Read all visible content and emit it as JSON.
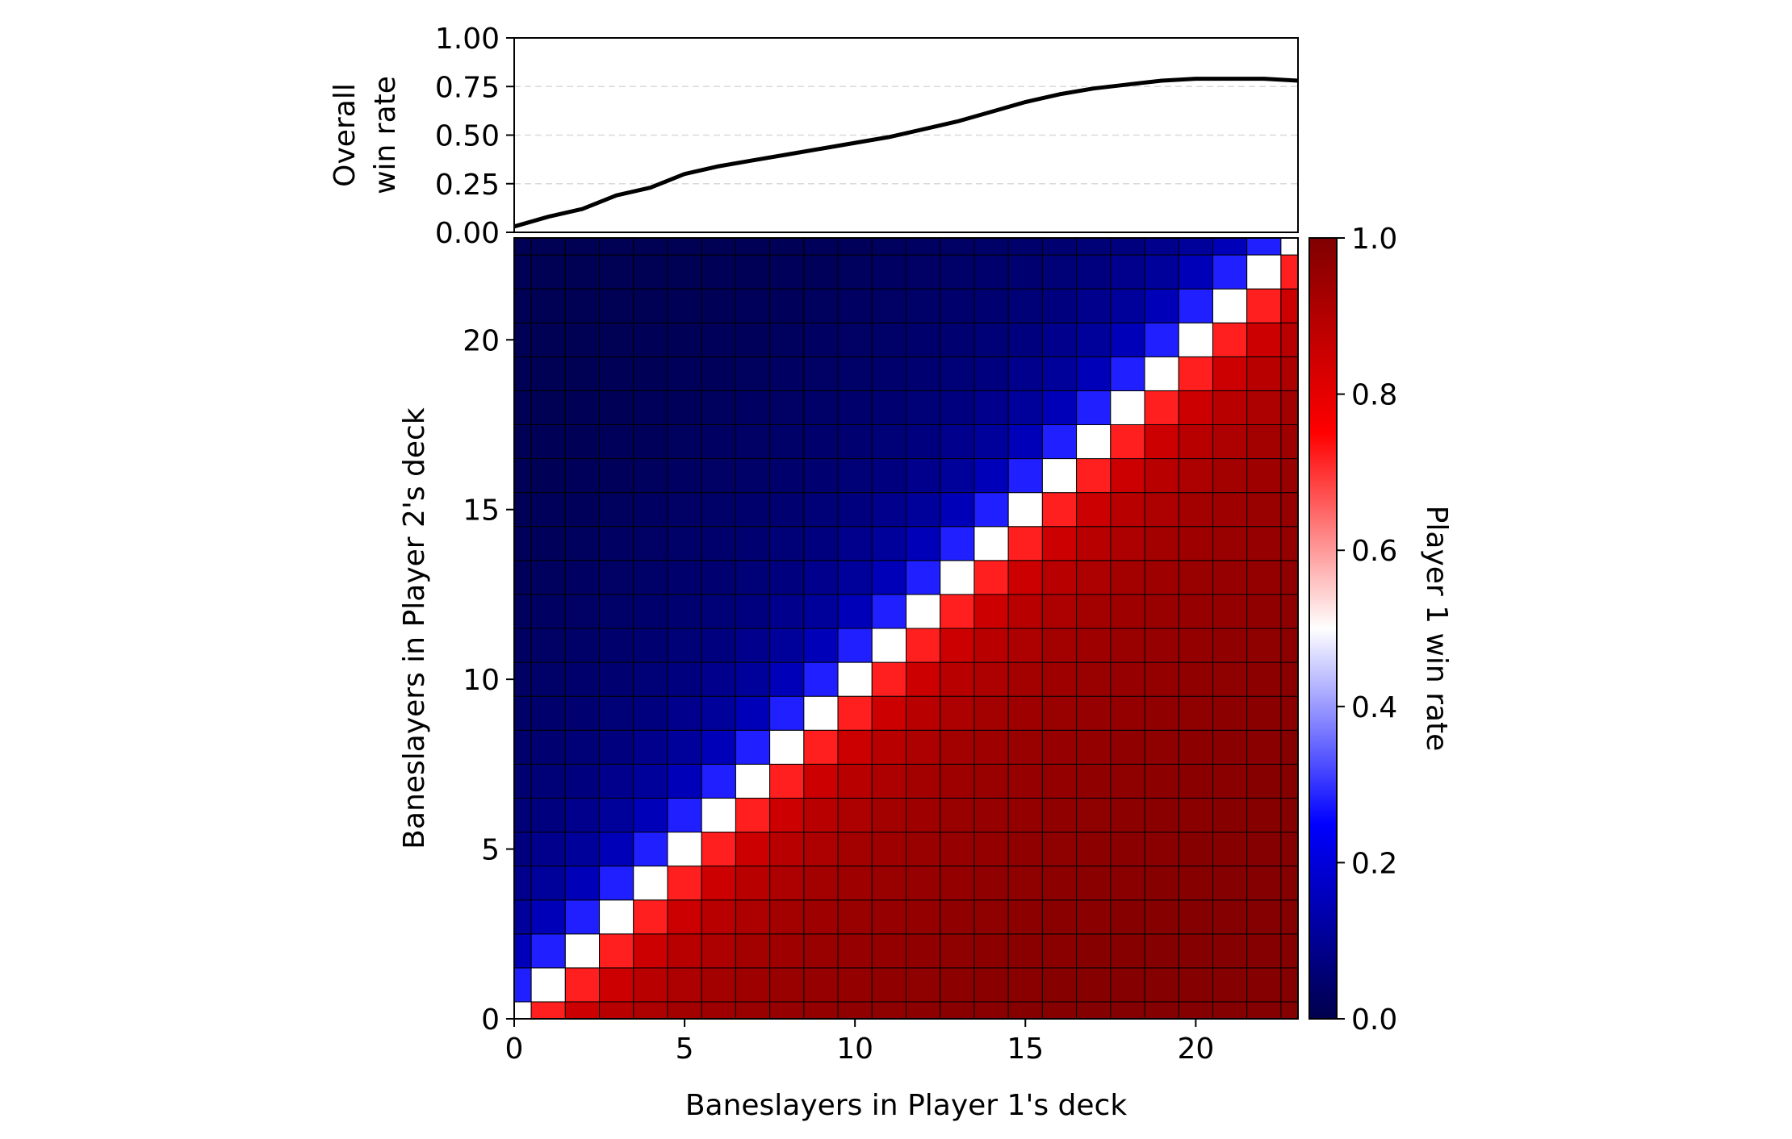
{
  "chart_data": [
    {
      "type": "line",
      "ylabel_lines": [
        "Overall",
        "win rate"
      ],
      "ylim": [
        0,
        1
      ],
      "xlim": [
        0,
        23
      ],
      "yticks": [
        0,
        0.25,
        0.5,
        0.75,
        1.0
      ],
      "ytick_labels": [
        "0.00",
        "0.25",
        "0.50",
        "0.75",
        "1.00"
      ],
      "grid": "horizontal dashed",
      "x": [
        0,
        1,
        2,
        3,
        4,
        5,
        6,
        7,
        8,
        9,
        10,
        11,
        12,
        13,
        14,
        15,
        16,
        17,
        18,
        19,
        20,
        21,
        22,
        23
      ],
      "y": [
        0.03,
        0.08,
        0.12,
        0.19,
        0.23,
        0.3,
        0.34,
        0.37,
        0.4,
        0.43,
        0.46,
        0.49,
        0.53,
        0.57,
        0.62,
        0.67,
        0.71,
        0.74,
        0.76,
        0.78,
        0.79,
        0.79,
        0.79,
        0.78
      ],
      "line_color": "#000000"
    },
    {
      "type": "heatmap",
      "xlabel": "Baneslayers in Player 1's deck",
      "ylabel": "Baneslayers in Player 2's deck",
      "xlim": [
        0,
        23
      ],
      "ylim": [
        0,
        23
      ],
      "xticks": [
        0,
        5,
        10,
        15,
        20
      ],
      "yticks": [
        0,
        5,
        10,
        15,
        20
      ],
      "n": 24,
      "value_rule": "win rate of Player 1 as a function of (Player 1 count i, Player 2 count j); cells on the diagonal i=j are 0.5",
      "diff_to_winrate": [
        0.5,
        0.72,
        0.85,
        0.89,
        0.91,
        0.93,
        0.94,
        0.95,
        0.955,
        0.96,
        0.965,
        0.97,
        0.975,
        0.98,
        0.98,
        0.985,
        0.985,
        0.99,
        0.99,
        0.99,
        0.99,
        0.99,
        0.99,
        0.99
      ],
      "colormap": "seismic",
      "colorbar": {
        "label": "Player 1 win rate",
        "range": [
          0,
          1
        ],
        "ticks": [
          0.0,
          0.2,
          0.4,
          0.6,
          0.8,
          1.0
        ],
        "tick_labels": [
          "0.0",
          "0.2",
          "0.4",
          "0.6",
          "0.8",
          "1.0"
        ]
      }
    }
  ]
}
